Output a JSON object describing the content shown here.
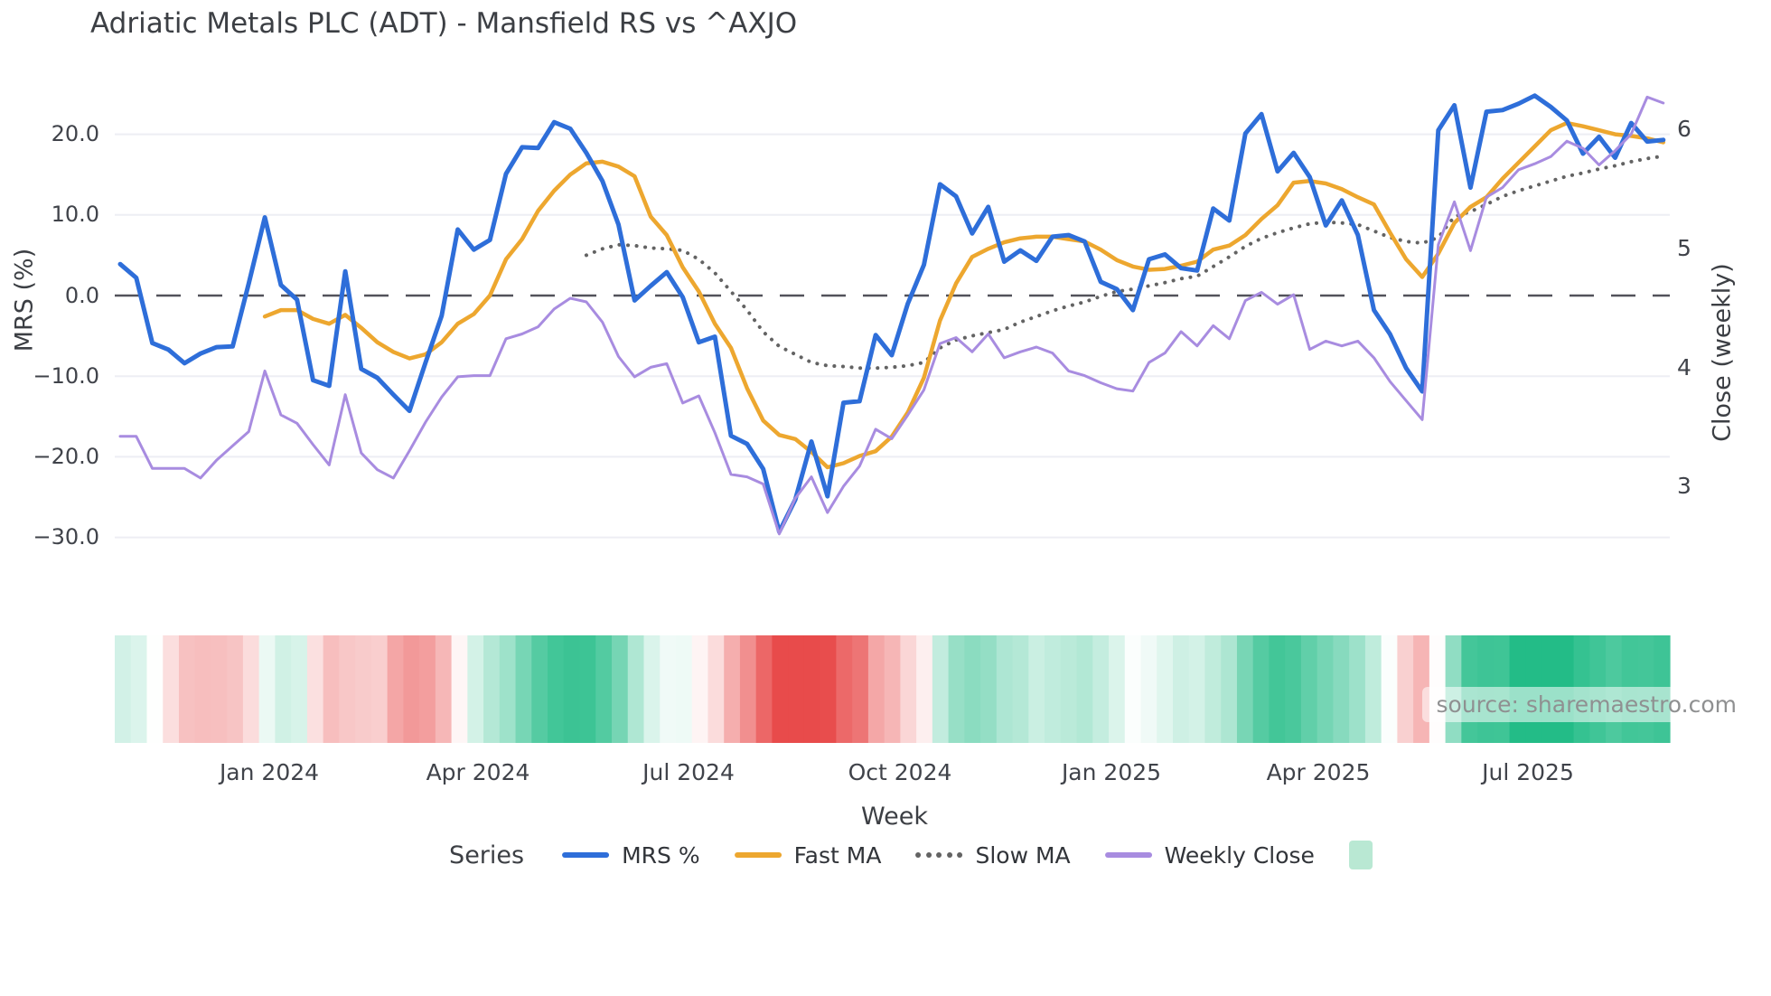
{
  "title": "Adriatic Metals PLC (ADT) - Mansfield RS vs ^AXJO",
  "source_note": "source: sharemaestro.com",
  "colors": {
    "mrs_blue": "#2e6ed9",
    "fast_ma_orange": "#eda72f",
    "slow_ma_gray": "#636363",
    "weekly_close_purple": "#a88ce0",
    "zero_line": "#52525a",
    "gridline": "#edeef4",
    "heat_positive_green": "#23bc87",
    "heat_negative_red": "#e84b4b",
    "legend_heat_swatch": "#b9e8d3"
  },
  "axes": {
    "x": {
      "label": "Week",
      "ticks": [
        "Jan 2024",
        "Apr 2024",
        "Jul 2024",
        "Oct 2024",
        "Jan 2025",
        "Apr 2025",
        "Jul 2025"
      ]
    },
    "y_left": {
      "label": "MRS (%)",
      "ticks": [
        "20.0",
        "10.0",
        "0.0",
        "−10.0",
        "−20.0",
        "−30.0"
      ],
      "tick_values": [
        20,
        10,
        0,
        -10,
        -20,
        -30
      ]
    },
    "y_right": {
      "label": "Close (weekly)",
      "ticks": [
        "6",
        "5",
        "4",
        "3"
      ],
      "tick_values": [
        6,
        5,
        4,
        3
      ]
    }
  },
  "legend": {
    "title": "Series",
    "items": [
      {
        "name": "MRS %",
        "color": "#2e6ed9",
        "style": "solid"
      },
      {
        "name": "Fast MA",
        "color": "#eda72f",
        "style": "solid"
      },
      {
        "name": "Slow MA",
        "color": "#636363",
        "style": "dotted"
      },
      {
        "name": "Weekly Close",
        "color": "#a88ce0",
        "style": "solid"
      }
    ],
    "heatmap_swatch": {
      "name": "",
      "color": "#b9e8d3"
    }
  },
  "chart_data": {
    "type": "line",
    "title": "Adriatic Metals PLC (ADT) - Mansfield RS vs ^AXJO",
    "xlabel": "Week",
    "ylabel_left": "MRS (%)",
    "ylabel_right": "Close (weekly)",
    "x_unit": "weekly observations (index 0..96)",
    "x_tick_labels": [
      "Jan 2024",
      "Apr 2024",
      "Jul 2024",
      "Oct 2024",
      "Jan 2025",
      "Apr 2025",
      "Jul 2025"
    ],
    "x_tick_week_index": [
      9.3,
      22.3,
      35.4,
      48.5,
      61.7,
      74.5,
      87.6
    ],
    "ylim_left": [
      -32.8,
      27.1
    ],
    "ylim_right": [
      2.38,
      6.44
    ],
    "grid": "horizontal only, zero line dashed",
    "legend_position": "bottom center",
    "series": [
      {
        "name": "MRS %",
        "axis": "left",
        "color": "#2e6ed9",
        "style": "solid",
        "width": 5,
        "values": [
          3.9,
          2.2,
          -5.9,
          -6.7,
          -8.4,
          -7.2,
          -6.4,
          -6.3,
          1.5,
          9.7,
          1.3,
          -0.5,
          -10.5,
          -11.2,
          3.0,
          -9.1,
          -10.2,
          -12.3,
          -14.3,
          -8.3,
          -2.5,
          8.2,
          5.7,
          6.9,
          15.1,
          18.4,
          18.3,
          21.5,
          20.7,
          17.7,
          14.2,
          8.8,
          -0.6,
          1.2,
          2.9,
          -0.2,
          -5.8,
          -5.1,
          -17.4,
          -18.4,
          -21.5,
          -29.3,
          -25.3,
          -18.1,
          -24.9,
          -13.3,
          -13.1,
          -4.9,
          -7.4,
          -1.0,
          3.8,
          13.8,
          12.3,
          7.7,
          11.0,
          4.2,
          5.6,
          4.3,
          7.3,
          7.5,
          6.7,
          1.7,
          0.8,
          -1.8,
          4.5,
          5.1,
          3.4,
          3.1,
          10.8,
          9.3,
          20.1,
          22.5,
          15.4,
          17.7,
          14.7,
          8.7,
          11.8,
          7.5,
          -1.8,
          -4.8,
          -9.0,
          -11.9,
          20.5,
          23.6,
          13.4,
          22.8,
          23.0,
          23.8,
          24.8,
          23.4,
          21.7,
          17.6,
          19.7,
          17.1,
          21.4,
          19.1,
          19.3
        ]
      },
      {
        "name": "Fast MA",
        "axis": "left",
        "color": "#eda72f",
        "style": "solid",
        "width": 4.5,
        "values": [
          null,
          null,
          null,
          null,
          null,
          null,
          null,
          null,
          null,
          -2.6,
          -1.8,
          -1.8,
          -2.9,
          -3.5,
          -2.4,
          -4.0,
          -5.8,
          -7.0,
          -7.8,
          -7.3,
          -5.8,
          -3.5,
          -2.3,
          0.0,
          4.5,
          7.0,
          10.5,
          13.0,
          15.0,
          16.4,
          16.6,
          16.0,
          14.8,
          9.8,
          7.5,
          3.5,
          0.5,
          -3.5,
          -6.5,
          -11.5,
          -15.5,
          -17.3,
          -17.8,
          -19.4,
          -21.3,
          -20.8,
          -19.9,
          -19.3,
          -17.5,
          -14.5,
          -10.2,
          -3.1,
          1.5,
          4.8,
          5.8,
          6.6,
          7.1,
          7.3,
          7.3,
          7.0,
          6.7,
          5.7,
          4.4,
          3.6,
          3.2,
          3.3,
          3.7,
          4.2,
          5.7,
          6.2,
          7.5,
          9.5,
          11.2,
          14.0,
          14.2,
          13.9,
          13.2,
          12.2,
          11.3,
          7.8,
          4.5,
          2.3,
          5.2,
          9.0,
          11.0,
          12.2,
          14.5,
          16.5,
          18.5,
          20.5,
          21.4,
          21.0,
          20.5,
          20.0,
          19.8,
          19.5,
          19.0
        ]
      },
      {
        "name": "Slow MA",
        "axis": "left",
        "color": "#636363",
        "style": "dotted",
        "width": 4,
        "values": [
          null,
          null,
          null,
          null,
          null,
          null,
          null,
          null,
          null,
          null,
          null,
          null,
          null,
          null,
          null,
          null,
          null,
          null,
          null,
          null,
          null,
          null,
          null,
          null,
          null,
          null,
          null,
          null,
          null,
          5.0,
          5.8,
          6.3,
          6.2,
          5.9,
          5.8,
          5.6,
          4.5,
          2.8,
          0.5,
          -1.8,
          -4.5,
          -6.3,
          -7.3,
          -8.3,
          -8.7,
          -8.8,
          -9.0,
          -9.0,
          -8.9,
          -8.7,
          -8.3,
          -6.5,
          -5.5,
          -5.0,
          -4.6,
          -4.2,
          -3.3,
          -2.6,
          -1.9,
          -1.3,
          -0.8,
          -0.1,
          0.5,
          0.8,
          1.2,
          1.6,
          2.1,
          2.4,
          3.6,
          4.8,
          6.1,
          7.1,
          7.8,
          8.4,
          8.9,
          9.1,
          9.0,
          8.8,
          8.0,
          7.2,
          6.7,
          6.5,
          7.2,
          9.8,
          10.4,
          11.3,
          12.3,
          13.0,
          13.6,
          14.2,
          14.8,
          15.2,
          15.7,
          16.1,
          16.6,
          17.0,
          17.3
        ]
      },
      {
        "name": "Weekly Close",
        "axis": "right",
        "color": "#a88ce0",
        "style": "solid",
        "width": 3,
        "values": [
          3.42,
          3.42,
          3.15,
          3.15,
          3.15,
          3.07,
          3.22,
          3.34,
          3.46,
          3.97,
          3.6,
          3.53,
          3.35,
          3.18,
          3.77,
          3.28,
          3.14,
          3.07,
          3.3,
          3.54,
          3.75,
          3.92,
          3.93,
          3.93,
          4.24,
          4.28,
          4.34,
          4.49,
          4.58,
          4.55,
          4.38,
          4.09,
          3.92,
          4.0,
          4.03,
          3.7,
          3.76,
          3.45,
          3.1,
          3.08,
          3.02,
          2.6,
          2.9,
          3.08,
          2.78,
          3.0,
          3.17,
          3.48,
          3.4,
          3.6,
          3.81,
          4.2,
          4.25,
          4.13,
          4.28,
          4.08,
          4.13,
          4.17,
          4.12,
          3.97,
          3.93,
          3.87,
          3.82,
          3.8,
          4.04,
          4.12,
          4.3,
          4.18,
          4.35,
          4.24,
          4.56,
          4.63,
          4.53,
          4.61,
          4.15,
          4.22,
          4.18,
          4.22,
          4.08,
          3.88,
          3.72,
          3.56,
          5.03,
          5.39,
          4.98,
          5.43,
          5.51,
          5.66,
          5.71,
          5.77,
          5.9,
          5.84,
          5.7,
          5.82,
          5.96,
          6.27,
          6.22
        ]
      }
    ],
    "heatmap": {
      "description": "weekly strip under plot, smoothed MRS %: red = negative, green = positive",
      "positive_color": "#23bc87",
      "negative_color": "#e84b4b",
      "basis_series": "MRS %"
    }
  }
}
